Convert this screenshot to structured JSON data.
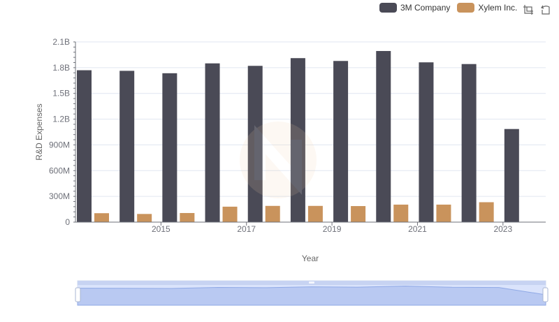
{
  "chart_data": {
    "type": "bar",
    "title": "",
    "xlabel": "Year",
    "ylabel": "R&D Expenses",
    "ylim": [
      0,
      2100000000
    ],
    "yticks": [
      {
        "value": 0,
        "label": "0"
      },
      {
        "value": 300000000,
        "label": "300M"
      },
      {
        "value": 600000000,
        "label": "600M"
      },
      {
        "value": 900000000,
        "label": "900M"
      },
      {
        "value": 1200000000,
        "label": "1.2B"
      },
      {
        "value": 1500000000,
        "label": "1.5B"
      },
      {
        "value": 1800000000,
        "label": "1.8B"
      },
      {
        "value": 2100000000,
        "label": "2.1B"
      }
    ],
    "categories": [
      "2014",
      "2015",
      "2016",
      "2017",
      "2018",
      "2019",
      "2020",
      "2021",
      "2022",
      "2023",
      "2024"
    ],
    "xtick_labels_shown": [
      "2015",
      "2017",
      "2019",
      "2021",
      "2023"
    ],
    "series": [
      {
        "name": "3M Company",
        "color": "#4a4a56",
        "values": [
          1770000000,
          1763000000,
          1735000000,
          1850000000,
          1821000000,
          1911000000,
          1878000000,
          1994000000,
          1862000000,
          1842000000,
          1085000000
        ]
      },
      {
        "name": "Xylem Inc.",
        "color": "#c9935c",
        "values": [
          104000000,
          95000000,
          106000000,
          180000000,
          189000000,
          189000000,
          187000000,
          204000000,
          204000000,
          232000000,
          null
        ]
      }
    ],
    "legend": {
      "position": "top-right"
    },
    "grid": true
  },
  "toolbar": {
    "icons": [
      "zoom-select-icon",
      "zoom-reset-icon"
    ]
  }
}
